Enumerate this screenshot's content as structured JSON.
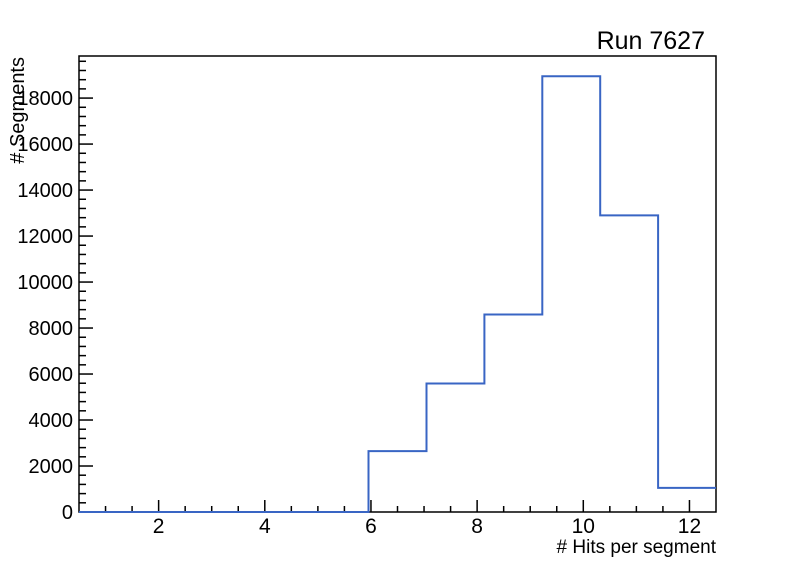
{
  "window": {
    "background": "#ffffff"
  },
  "chart_data": {
    "type": "step-histogram",
    "title": "Run 7627",
    "xlabel": "# Hits per segment",
    "ylabel": "# Segments",
    "xlim": [
      0.5,
      12.5
    ],
    "ylim": [
      0,
      19830
    ],
    "bin_edges": [
      0.5,
      1.5909,
      2.6818,
      3.7727,
      4.8636,
      5.9545,
      7.0455,
      8.1364,
      9.2273,
      10.3182,
      11.4091,
      12.5
    ],
    "values": [
      0,
      0,
      0,
      0,
      0,
      2650,
      5590,
      8590,
      18950,
      12900,
      1050
    ],
    "x_tick_labels": [
      2,
      4,
      6,
      8,
      10,
      12
    ],
    "x_minor_tick_step": 0.5,
    "y_tick_labels": [
      0,
      2000,
      4000,
      6000,
      8000,
      10000,
      12000,
      14000,
      16000,
      18000
    ],
    "y_minor_tick_step": 400,
    "grid": false,
    "legend": null,
    "line_color": "#3965C4",
    "axis_color": "#000000",
    "background_color": "#ffffff"
  }
}
